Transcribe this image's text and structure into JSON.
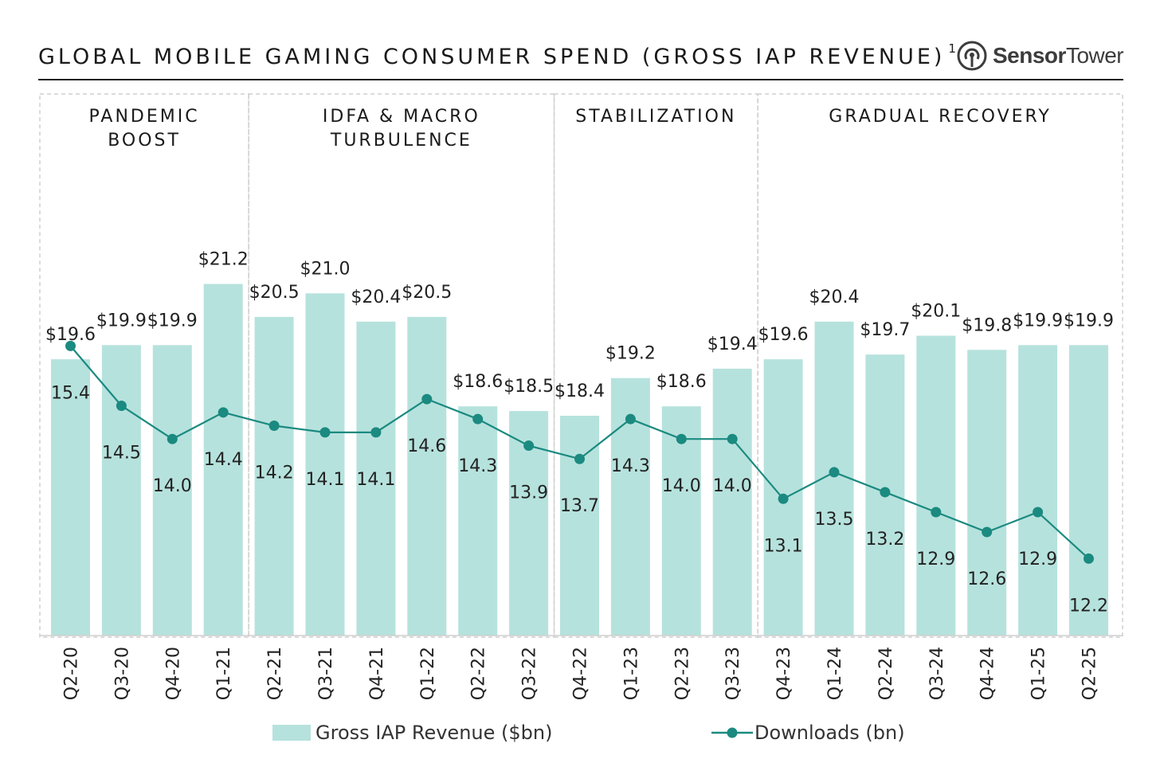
{
  "title": "GLOBAL MOBILE GAMING CONSUMER SPEND (GROSS IAP REVENUE)",
  "title_footnote": "1",
  "brand": {
    "name_bold": "Sensor",
    "name_regular": "Tower",
    "icon": "sensor-tower-logo-icon"
  },
  "colors": {
    "bar": "#b6e2dd",
    "line": "#1b8a80",
    "panel_border": "#cfcfcf",
    "text": "#222222"
  },
  "chart_data": {
    "type": "bar",
    "title": "GLOBAL MOBILE GAMING CONSUMER SPEND (GROSS IAP REVENUE)",
    "categories": [
      "Q2-20",
      "Q3-20",
      "Q4-20",
      "Q1-21",
      "Q2-21",
      "Q3-21",
      "Q4-21",
      "Q1-22",
      "Q2-22",
      "Q3-22",
      "Q4-22",
      "Q1-23",
      "Q2-23",
      "Q3-23",
      "Q4-23",
      "Q1-24",
      "Q2-24",
      "Q3-24",
      "Q4-24",
      "Q1-25",
      "Q2-25"
    ],
    "series": [
      {
        "name": "Gross IAP Revenue ($bn)",
        "type": "bar",
        "values": [
          19.6,
          19.9,
          19.9,
          21.2,
          20.5,
          21.0,
          20.4,
          20.5,
          18.6,
          18.5,
          18.4,
          19.2,
          18.6,
          19.4,
          19.6,
          20.4,
          19.7,
          20.1,
          19.8,
          19.9,
          19.9
        ],
        "labels": [
          "$19.6",
          "$19.9",
          "$19.9",
          "$21.2",
          "$20.5",
          "$21.0",
          "$20.4",
          "$20.5",
          "$18.6",
          "$18.5",
          "$18.4",
          "$19.2",
          "$18.6",
          "$19.4",
          "$19.6",
          "$20.4",
          "$19.7",
          "$20.1",
          "$19.8",
          "$19.9",
          "$19.9"
        ]
      },
      {
        "name": "Downloads (bn)",
        "type": "line",
        "values": [
          15.4,
          14.5,
          14.0,
          14.4,
          14.2,
          14.1,
          14.1,
          14.6,
          14.3,
          13.9,
          13.7,
          14.3,
          14.0,
          14.0,
          13.1,
          13.5,
          13.2,
          12.9,
          12.6,
          12.9,
          12.2
        ],
        "labels": [
          "15.4",
          "14.5",
          "14.0",
          "14.4",
          "14.2",
          "14.1",
          "14.1",
          "14.6",
          "14.3",
          "13.9",
          "13.7",
          "14.3",
          "14.0",
          "14.0",
          "13.1",
          "13.5",
          "13.2",
          "12.9",
          "12.6",
          "12.9",
          "12.2"
        ]
      }
    ],
    "phases": [
      {
        "lines": [
          "PANDEMIC",
          "BOOST"
        ],
        "start": 0,
        "end": 3
      },
      {
        "lines": [
          "IDFA & MACRO",
          "TURBULENCE"
        ],
        "start": 4,
        "end": 9
      },
      {
        "lines": [
          "STABILIZATION"
        ],
        "start": 10,
        "end": 13
      },
      {
        "lines": [
          "GRADUAL RECOVERY"
        ],
        "start": 14,
        "end": 20
      }
    ],
    "legend": [
      "Gross IAP Revenue ($bn)",
      "Downloads (bn)"
    ],
    "legend_position": "bottom-center",
    "grid": false
  }
}
